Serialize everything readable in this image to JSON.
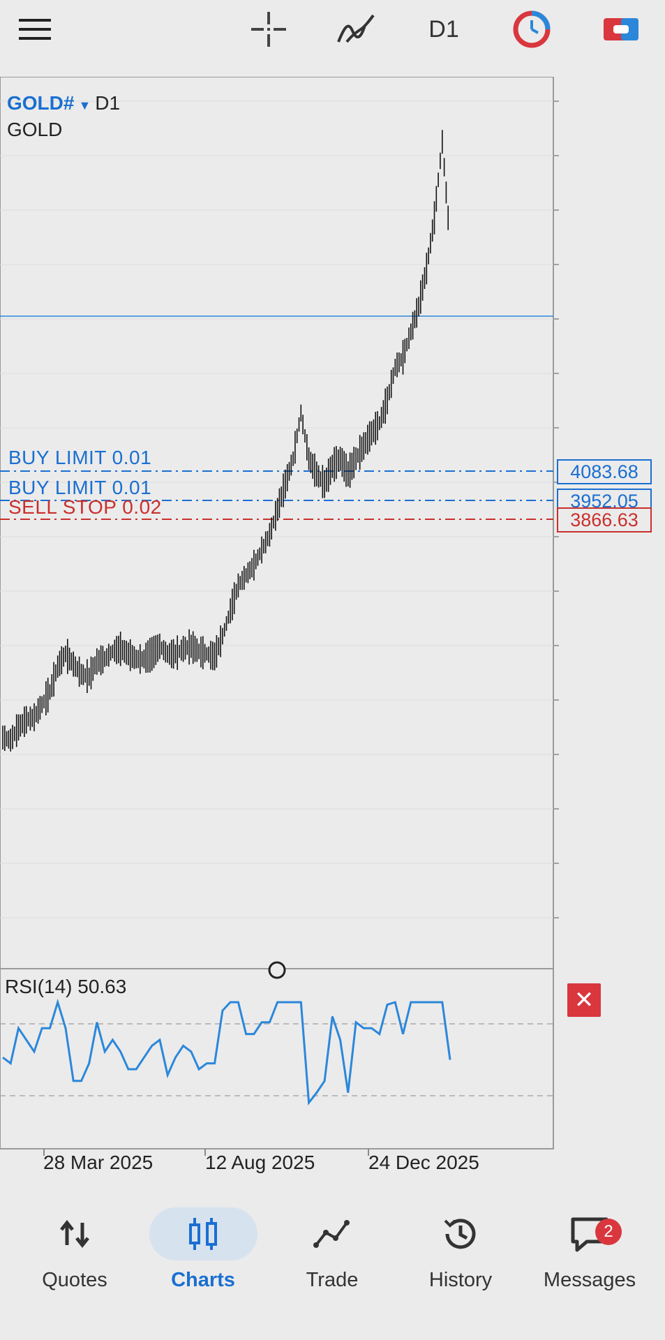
{
  "toolbar": {
    "menu_icon": "hamburger-icon",
    "crosshair_icon": "crosshair-icon",
    "indicators_icon": "indicator-icon",
    "timeframe": "D1",
    "clock_icon": "clock-icon",
    "trade_icon": "trade-toggle-icon"
  },
  "chart": {
    "symbol": "GOLD#",
    "symbol_timeframe": "D1",
    "description": "GOLD",
    "orders": [
      {
        "label": "BUY LIMIT 0.01",
        "price": "4083.68",
        "color": "#1a6fd1"
      },
      {
        "label": "BUY LIMIT 0.01",
        "price": "3952.05",
        "color": "#1a6fd1"
      },
      {
        "label": "SELL STOP 0.02",
        "price": "3866.63",
        "color": "#c9302c"
      }
    ],
    "rsi_label": "RSI(14) 50.63",
    "close_symbol": "✕",
    "dates": [
      "28 Mar 2025",
      "12 Aug 2025",
      "24 Dec 2025"
    ]
  },
  "chart_data": {
    "type": "candlestick",
    "series": [
      {
        "name": "GOLD#",
        "values": [
          3000,
          2990,
          3040,
          3070,
          3080,
          3130,
          3180,
          3280,
          3330,
          3290,
          3250,
          3240,
          3300,
          3310,
          3340,
          3350,
          3330,
          3310,
          3310,
          3330,
          3360,
          3330,
          3330,
          3350,
          3360,
          3340,
          3330,
          3320,
          3400,
          3500,
          3600,
          3640,
          3680,
          3740,
          3800,
          3900,
          4000,
          4100,
          4280,
          4100,
          4040,
          4000,
          4070,
          4100,
          4040,
          4100,
          4150,
          4200,
          4240,
          4330,
          4460,
          4500,
          4600,
          4700,
          4850,
          5050,
          5350,
          4950
        ]
      }
    ],
    "rsi": [
      {
        "name": "RSI(14)",
        "last": 50.63
      }
    ]
  },
  "bottom_nav": {
    "items": [
      {
        "label": "Quotes",
        "icon": "quotes-arrows-icon",
        "active": false
      },
      {
        "label": "Charts",
        "icon": "candlestick-chart-icon",
        "active": true
      },
      {
        "label": "Trade",
        "icon": "trade-line-icon",
        "active": false
      },
      {
        "label": "History",
        "icon": "history-clock-icon",
        "active": false
      },
      {
        "label": "Messages",
        "icon": "messages-icon",
        "active": false,
        "badge": "2"
      }
    ]
  },
  "colors": {
    "accent": "#1a6fd1",
    "sell": "#c9302c",
    "rsi_line": "#2b87da",
    "background": "#ebebeb"
  }
}
